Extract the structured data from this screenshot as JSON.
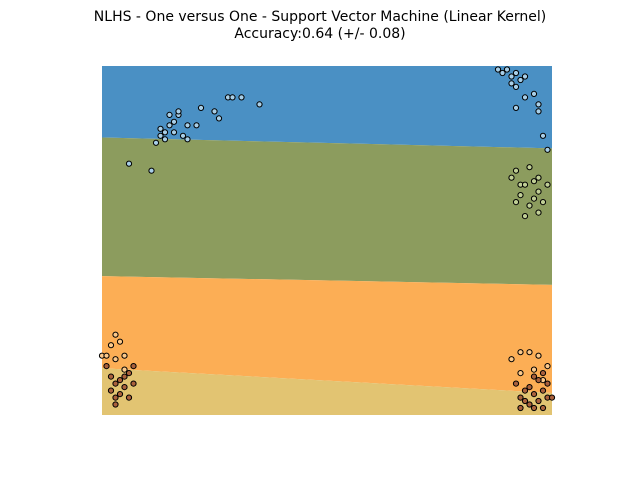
{
  "chart_data": {
    "type": "scatter",
    "title": "NLHS - One versus One - Support Vector Machine (Linear Kernel)",
    "subtitle": "Accuracy:0.64 (+/- 0.08)",
    "xlabel": "",
    "ylabel": "",
    "xlim": [
      0,
      1
    ],
    "ylim": [
      0,
      1
    ],
    "grid": false,
    "axes_visible": false,
    "decision_regions": [
      {
        "class": 0,
        "color": "#4a90c4",
        "lower_boundary_left": 0.795,
        "lower_boundary_right": 0.764
      },
      {
        "class": 1,
        "color": "#8c9c5e",
        "lower_boundary_left": 0.398,
        "lower_boundary_right": 0.373
      },
      {
        "class": 2,
        "color": "#fcae55",
        "lower_boundary_left": 0.134,
        "lower_boundary_right": 0.063
      },
      {
        "class": 3,
        "color": "#e2c472",
        "lower_boundary_left": 0.0,
        "lower_boundary_right": 0.0
      }
    ],
    "series": [
      {
        "class": 0,
        "color": "#a8cfe8",
        "points": [
          [
            0.06,
            0.72
          ],
          [
            0.11,
            0.7
          ],
          [
            0.12,
            0.78
          ],
          [
            0.13,
            0.8
          ],
          [
            0.13,
            0.82
          ],
          [
            0.14,
            0.81
          ],
          [
            0.15,
            0.83
          ],
          [
            0.16,
            0.81
          ],
          [
            0.16,
            0.84
          ],
          [
            0.17,
            0.86
          ],
          [
            0.17,
            0.87
          ],
          [
            0.18,
            0.8
          ],
          [
            0.19,
            0.79
          ],
          [
            0.19,
            0.83
          ],
          [
            0.21,
            0.83
          ],
          [
            0.22,
            0.88
          ],
          [
            0.25,
            0.87
          ],
          [
            0.26,
            0.85
          ],
          [
            0.28,
            0.91
          ],
          [
            0.29,
            0.91
          ],
          [
            0.31,
            0.91
          ],
          [
            0.35,
            0.89
          ],
          [
            0.15,
            0.86
          ],
          [
            0.14,
            0.79
          ],
          [
            0.88,
            0.99
          ],
          [
            0.89,
            0.98
          ],
          [
            0.9,
            0.99
          ],
          [
            0.91,
            0.97
          ],
          [
            0.92,
            0.98
          ],
          [
            0.93,
            0.96
          ],
          [
            0.92,
            0.94
          ],
          [
            0.94,
            0.97
          ],
          [
            0.91,
            0.95
          ],
          [
            0.92,
            0.88
          ],
          [
            0.94,
            0.91
          ],
          [
            0.96,
            0.92
          ],
          [
            0.97,
            0.89
          ],
          [
            0.97,
            0.87
          ],
          [
            0.98,
            0.8
          ],
          [
            0.99,
            0.76
          ]
        ]
      },
      {
        "class": 1,
        "color": "#c0cf95",
        "points": [
          [
            0.91,
            0.68
          ],
          [
            0.92,
            0.7
          ],
          [
            0.93,
            0.63
          ],
          [
            0.93,
            0.66
          ],
          [
            0.94,
            0.66
          ],
          [
            0.95,
            0.71
          ],
          [
            0.96,
            0.62
          ],
          [
            0.97,
            0.64
          ],
          [
            0.98,
            0.61
          ],
          [
            0.99,
            0.66
          ],
          [
            0.95,
            0.6
          ],
          [
            0.97,
            0.58
          ],
          [
            0.94,
            0.57
          ],
          [
            0.92,
            0.61
          ],
          [
            0.97,
            0.68
          ],
          [
            0.96,
            0.67
          ]
        ]
      },
      {
        "class": 2,
        "color": "#fdc98a",
        "points": [
          [
            0.0,
            0.17
          ],
          [
            0.01,
            0.17
          ],
          [
            0.02,
            0.2
          ],
          [
            0.03,
            0.23
          ],
          [
            0.03,
            0.16
          ],
          [
            0.04,
            0.21
          ],
          [
            0.05,
            0.17
          ],
          [
            0.05,
            0.13
          ],
          [
            0.91,
            0.16
          ],
          [
            0.93,
            0.18
          ],
          [
            0.95,
            0.18
          ],
          [
            0.96,
            0.13
          ],
          [
            0.97,
            0.17
          ],
          [
            0.98,
            0.1
          ],
          [
            0.99,
            0.14
          ],
          [
            0.93,
            0.12
          ]
        ]
      },
      {
        "class": 3,
        "color": "#a9603c",
        "points": [
          [
            0.01,
            0.14
          ],
          [
            0.02,
            0.11
          ],
          [
            0.02,
            0.07
          ],
          [
            0.03,
            0.05
          ],
          [
            0.03,
            0.09
          ],
          [
            0.04,
            0.06
          ],
          [
            0.04,
            0.1
          ],
          [
            0.05,
            0.11
          ],
          [
            0.05,
            0.08
          ],
          [
            0.06,
            0.12
          ],
          [
            0.07,
            0.09
          ],
          [
            0.06,
            0.05
          ],
          [
            0.07,
            0.14
          ],
          [
            0.03,
            0.03
          ],
          [
            0.92,
            0.09
          ],
          [
            0.93,
            0.05
          ],
          [
            0.94,
            0.07
          ],
          [
            0.94,
            0.04
          ],
          [
            0.95,
            0.08
          ],
          [
            0.95,
            0.03
          ],
          [
            0.96,
            0.06
          ],
          [
            0.96,
            0.02
          ],
          [
            0.97,
            0.1
          ],
          [
            0.97,
            0.04
          ],
          [
            0.98,
            0.07
          ],
          [
            0.98,
            0.02
          ],
          [
            0.99,
            0.05
          ],
          [
            0.99,
            0.09
          ],
          [
            1.0,
            0.05
          ],
          [
            0.96,
            0.11
          ],
          [
            0.93,
            0.02
          ],
          [
            0.98,
            0.12
          ]
        ]
      }
    ]
  }
}
